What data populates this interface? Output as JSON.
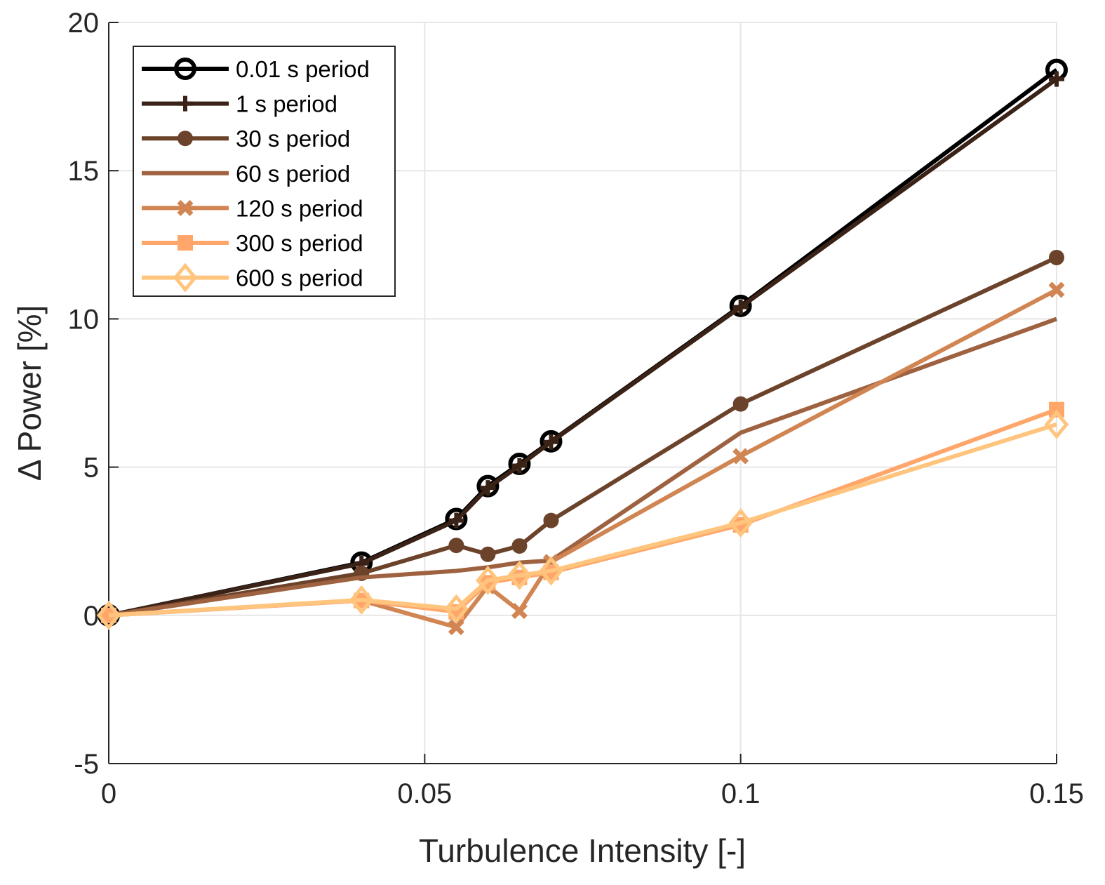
{
  "chart_data": {
    "type": "line",
    "title": "",
    "xlabel": "Turbulence Intensity [-]",
    "ylabel": "Δ Power [%]",
    "xlim": [
      0,
      0.15
    ],
    "ylim": [
      -5,
      20
    ],
    "xticks": [
      0,
      0.05,
      0.1,
      0.15
    ],
    "xtick_labels": [
      "0",
      "0.05",
      "0.1",
      "0.15"
    ],
    "yticks": [
      -5,
      0,
      5,
      10,
      15,
      20
    ],
    "ytick_labels": [
      "-5",
      "0",
      "5",
      "10",
      "15",
      "20"
    ],
    "grid": true,
    "legend_placement": "top-left",
    "x": [
      0,
      0.04,
      0.055,
      0.06,
      0.065,
      0.07,
      0.1,
      0.15
    ],
    "series": [
      {
        "name": "0.01 s period",
        "color": "#000000",
        "marker": "circle-open",
        "values": [
          0,
          1.78,
          3.25,
          4.36,
          5.11,
          5.87,
          10.44,
          18.4
        ]
      },
      {
        "name": "1 s period",
        "color": "#3a2216",
        "marker": "plus",
        "values": [
          0,
          1.75,
          3.2,
          4.3,
          5.05,
          5.85,
          10.4,
          18.09
        ]
      },
      {
        "name": "30 s period",
        "color": "#6b422a",
        "marker": "circle-filled",
        "values": [
          0,
          1.42,
          2.36,
          2.06,
          2.34,
          3.2,
          7.13,
          12.07
        ]
      },
      {
        "name": "60 s period",
        "color": "#9e6240",
        "marker": "none",
        "values": [
          0,
          1.28,
          1.5,
          1.62,
          1.78,
          1.85,
          6.16,
          10.0
        ]
      },
      {
        "name": "120 s period",
        "color": "#d08552",
        "marker": "x",
        "values": [
          0,
          0.5,
          -0.4,
          0.98,
          0.15,
          1.8,
          5.37,
          10.98
        ]
      },
      {
        "name": "300 s period",
        "color": "#ffa66a",
        "marker": "square",
        "values": [
          0,
          0.5,
          0.12,
          1.1,
          1.28,
          1.45,
          3.05,
          6.94
        ]
      },
      {
        "name": "600 s period",
        "color": "#ffc57e",
        "marker": "diamond-open",
        "values": [
          0,
          0.52,
          0.22,
          1.18,
          1.35,
          1.5,
          3.12,
          6.44
        ]
      }
    ]
  }
}
